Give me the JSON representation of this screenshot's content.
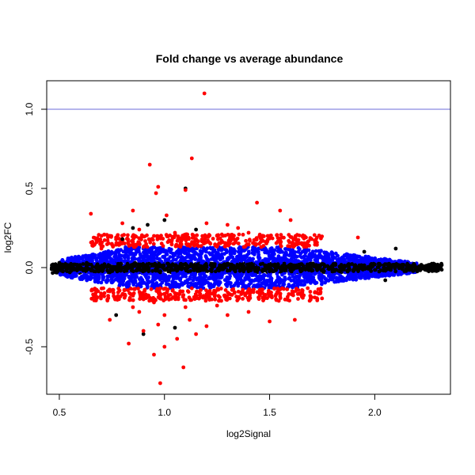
{
  "chart_data": {
    "type": "scatter",
    "title": "Fold change vs average abundance",
    "xlabel": "log2Signal",
    "ylabel": "log2FC",
    "xlim": [
      0.44,
      2.36
    ],
    "ylim": [
      -0.8,
      1.18
    ],
    "x_ticks": [
      0.5,
      1.0,
      1.5,
      2.0
    ],
    "x_tick_labels": [
      "0.5",
      "1.0",
      "1.5",
      "2.0"
    ],
    "y_ticks": [
      -0.5,
      0.0,
      0.5,
      1.0
    ],
    "y_tick_labels": [
      "-0.5",
      "0.0",
      "0.5",
      "1.0"
    ],
    "grid": false,
    "reference_lines": [
      {
        "axis": "y",
        "value": 1.0,
        "color": "#6b6bd9"
      }
    ],
    "colors": {
      "black": "#000000",
      "blue": "#0000ff",
      "red": "#ff0000"
    },
    "series": [
      {
        "color": "black",
        "points": [
          [
            0.47,
            0.02
          ],
          [
            0.48,
            -0.01
          ],
          [
            0.5,
            0.03
          ],
          [
            0.51,
            -0.02
          ],
          [
            0.53,
            0.01
          ],
          [
            0.55,
            -0.03
          ],
          [
            0.57,
            0.02
          ],
          [
            0.6,
            -0.01
          ],
          [
            0.63,
            0.03
          ],
          [
            0.66,
            -0.02
          ],
          [
            0.7,
            0.01
          ],
          [
            0.74,
            -0.03
          ],
          [
            0.78,
            0.02
          ],
          [
            0.82,
            -0.02
          ],
          [
            0.86,
            0.03
          ],
          [
            0.9,
            -0.01
          ],
          [
            0.94,
            0.02
          ],
          [
            0.98,
            -0.03
          ],
          [
            1.02,
            0.01
          ],
          [
            1.06,
            -0.02
          ],
          [
            1.1,
            0.02
          ],
          [
            1.15,
            -0.01
          ],
          [
            1.2,
            0.01
          ],
          [
            1.3,
            -0.02
          ],
          [
            1.4,
            0.01
          ],
          [
            1.5,
            -0.01
          ],
          [
            1.6,
            0.02
          ],
          [
            1.7,
            -0.02
          ],
          [
            1.8,
            0.01
          ],
          [
            1.9,
            -0.01
          ],
          [
            2.0,
            0.02
          ],
          [
            2.05,
            -0.02
          ],
          [
            2.1,
            0.01
          ],
          [
            2.15,
            -0.01
          ],
          [
            2.2,
            0.0
          ],
          [
            2.24,
            -0.01
          ],
          [
            2.27,
            -0.01
          ],
          [
            2.3,
            -0.01
          ],
          [
            0.8,
            0.18
          ],
          [
            0.85,
            0.25
          ],
          [
            0.92,
            0.27
          ],
          [
            1.0,
            0.3
          ],
          [
            1.1,
            0.5
          ],
          [
            1.15,
            0.24
          ],
          [
            0.77,
            -0.3
          ],
          [
            0.9,
            -0.42
          ],
          [
            1.05,
            -0.38
          ],
          [
            1.95,
            0.1
          ],
          [
            2.1,
            0.12
          ],
          [
            2.05,
            -0.08
          ]
        ]
      },
      {
        "color": "red",
        "points": [
          [
            1.19,
            1.1
          ],
          [
            1.13,
            0.69
          ],
          [
            0.93,
            0.65
          ],
          [
            0.97,
            0.51
          ],
          [
            0.96,
            0.47
          ],
          [
            1.1,
            0.49
          ],
          [
            1.44,
            0.41
          ],
          [
            1.01,
            0.33
          ],
          [
            0.85,
            0.36
          ],
          [
            0.65,
            0.34
          ],
          [
            0.8,
            0.28
          ],
          [
            1.2,
            0.28
          ],
          [
            1.3,
            0.27
          ],
          [
            1.55,
            0.36
          ],
          [
            1.6,
            0.3
          ],
          [
            0.88,
            0.24
          ],
          [
            1.05,
            0.22
          ],
          [
            1.35,
            0.25
          ],
          [
            1.5,
            0.2
          ],
          [
            1.7,
            0.18
          ],
          [
            1.92,
            0.19
          ],
          [
            0.75,
            0.15
          ],
          [
            0.95,
            0.2
          ],
          [
            1.15,
            0.18
          ],
          [
            1.4,
            0.22
          ],
          [
            0.7,
            0.12
          ],
          [
            1.25,
            0.2
          ],
          [
            1.45,
            0.15
          ],
          [
            1.62,
            0.14
          ],
          [
            1.03,
            0.17
          ],
          [
            0.98,
            -0.73
          ],
          [
            1.09,
            -0.63
          ],
          [
            0.95,
            -0.55
          ],
          [
            1.0,
            -0.5
          ],
          [
            0.83,
            -0.48
          ],
          [
            1.06,
            -0.45
          ],
          [
            1.15,
            -0.42
          ],
          [
            0.9,
            -0.4
          ],
          [
            1.2,
            -0.37
          ],
          [
            1.5,
            -0.34
          ],
          [
            1.62,
            -0.33
          ],
          [
            0.74,
            -0.33
          ],
          [
            1.3,
            -0.3
          ],
          [
            1.4,
            -0.28
          ],
          [
            0.85,
            -0.25
          ],
          [
            1.1,
            -0.25
          ],
          [
            0.95,
            -0.22
          ],
          [
            1.35,
            -0.2
          ],
          [
            1.05,
            -0.19
          ],
          [
            1.55,
            -0.18
          ],
          [
            1.2,
            -0.17
          ],
          [
            0.9,
            -0.18
          ],
          [
            1.45,
            -0.16
          ],
          [
            0.8,
            -0.17
          ],
          [
            1.0,
            -0.3
          ],
          [
            1.25,
            -0.24
          ],
          [
            0.97,
            -0.36
          ],
          [
            1.12,
            -0.33
          ],
          [
            0.88,
            -0.28
          ],
          [
            1.27,
            -0.21
          ]
        ]
      }
    ],
    "blue_band": {
      "color": "blue",
      "x_range": [
        0.5,
        2.2
      ],
      "half_width": [
        0.05,
        0.13,
        0.02
      ],
      "description_free": true
    }
  }
}
